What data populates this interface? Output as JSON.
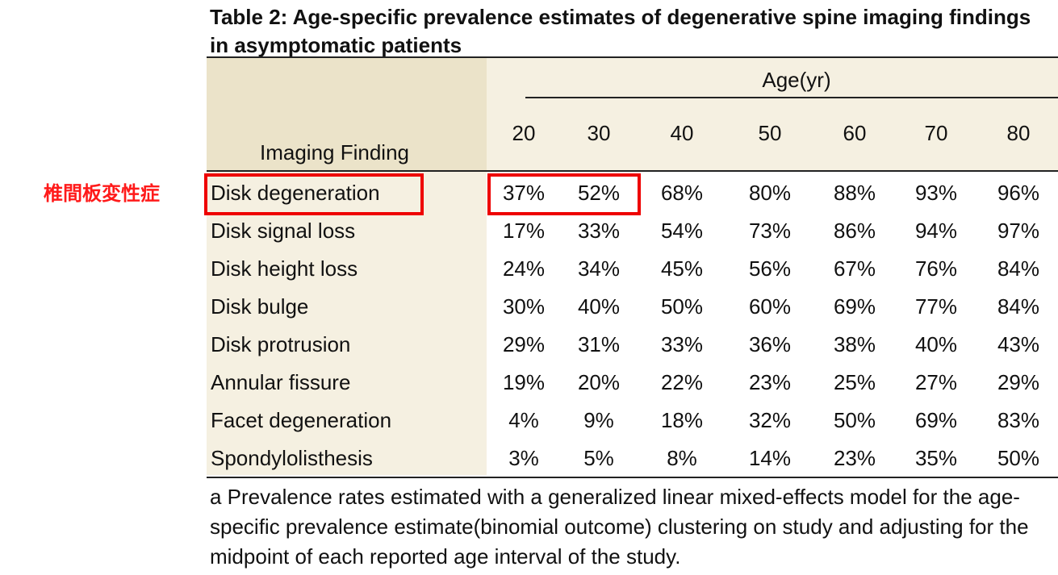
{
  "title": "Table 2: Age-specific prevalence estimates of degenerative spine imaging findings in asymptomatic patients",
  "annotation": "椎間板変性症",
  "table": {
    "row_header": "Imaging Finding",
    "group_header": "Age(yr)",
    "columns": [
      "20",
      "30",
      "40",
      "50",
      "60",
      "70",
      "80"
    ],
    "rows": [
      {
        "label": "Disk degeneration",
        "values": [
          "37%",
          "52%",
          "68%",
          "80%",
          "88%",
          "93%",
          "96%"
        ]
      },
      {
        "label": "Disk signal loss",
        "values": [
          "17%",
          "33%",
          "54%",
          "73%",
          "86%",
          "94%",
          "97%"
        ]
      },
      {
        "label": "Disk height loss",
        "values": [
          "24%",
          "34%",
          "45%",
          "56%",
          "67%",
          "76%",
          "84%"
        ]
      },
      {
        "label": "Disk bulge",
        "values": [
          "30%",
          "40%",
          "50%",
          "60%",
          "69%",
          "77%",
          "84%"
        ]
      },
      {
        "label": "Disk protrusion",
        "values": [
          "29%",
          "31%",
          "33%",
          "36%",
          "38%",
          "40%",
          "43%"
        ]
      },
      {
        "label": "Annular fissure",
        "values": [
          "19%",
          "20%",
          "22%",
          "23%",
          "25%",
          "27%",
          "29%"
        ]
      },
      {
        "label": "Facet degeneration",
        "values": [
          "4%",
          "9%",
          "18%",
          "32%",
          "50%",
          "69%",
          "83%"
        ]
      },
      {
        "label": "Spondylolisthesis",
        "values": [
          "3%",
          "5%",
          "8%",
          "14%",
          "23%",
          "35%",
          "50%"
        ]
      }
    ]
  },
  "footnote": "a Prevalence rates estimated with a generalized linear mixed-effects model for the age-specific prevalence estimate(binomial outcome) clustering on study and adjusting for the midpoint of each reported age interval of the study.",
  "colors": {
    "highlight": "#ee0000",
    "header_bg": "#ebe3c9",
    "body_bg": "#f5f0e1"
  }
}
